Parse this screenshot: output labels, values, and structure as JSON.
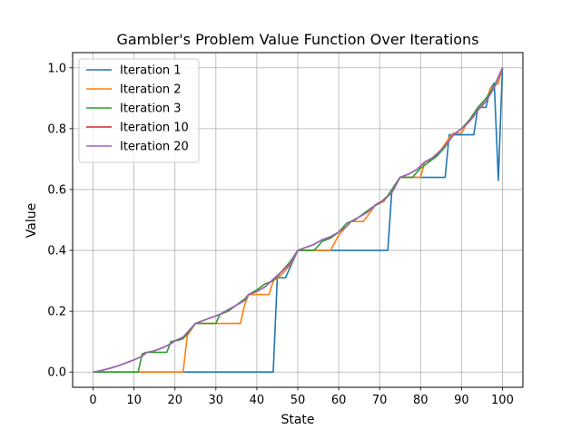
{
  "chart_data": {
    "type": "line",
    "title": "Gambler's Problem Value Function Over Iterations",
    "xlabel": "State",
    "ylabel": "Value",
    "xlim": [
      -5,
      105
    ],
    "ylim": [
      -0.05,
      1.05
    ],
    "xticks": [
      0,
      10,
      20,
      30,
      40,
      50,
      60,
      70,
      80,
      90,
      100
    ],
    "yticks": [
      0.0,
      0.2,
      0.4,
      0.6,
      0.8,
      1.0
    ],
    "xtick_labels": [
      "0",
      "10",
      "20",
      "30",
      "40",
      "50",
      "60",
      "70",
      "80",
      "90",
      "100"
    ],
    "ytick_labels": [
      "0.0",
      "0.2",
      "0.4",
      "0.6",
      "0.8",
      "1.0"
    ],
    "grid": true,
    "legend_position": "top-left",
    "series": [
      {
        "name": "Iteration 1",
        "color": "#1f77b4",
        "points": [
          [
            0,
            0
          ],
          [
            44,
            0
          ],
          [
            45,
            0.31
          ],
          [
            47,
            0.31
          ],
          [
            48,
            0.34
          ],
          [
            50,
            0.4
          ],
          [
            72,
            0.4
          ],
          [
            73,
            0.6
          ],
          [
            74,
            0.62
          ],
          [
            75,
            0.64
          ],
          [
            86,
            0.64
          ],
          [
            87,
            0.78
          ],
          [
            93,
            0.78
          ],
          [
            94,
            0.87
          ],
          [
            96,
            0.87
          ],
          [
            97,
            0.93
          ],
          [
            98,
            0.95
          ],
          [
            99,
            0.63
          ],
          [
            100,
            1.0
          ]
        ]
      },
      {
        "name": "Iteration 2",
        "color": "#ff7f0e",
        "points": [
          [
            0,
            0
          ],
          [
            22,
            0
          ],
          [
            23,
            0.12
          ],
          [
            25,
            0.16
          ],
          [
            36,
            0.16
          ],
          [
            37,
            0.22
          ],
          [
            38,
            0.255
          ],
          [
            43,
            0.255
          ],
          [
            44,
            0.3
          ],
          [
            46,
            0.32
          ],
          [
            48,
            0.35
          ],
          [
            50,
            0.4
          ],
          [
            58,
            0.4
          ],
          [
            60,
            0.45
          ],
          [
            62,
            0.48
          ],
          [
            63,
            0.495
          ],
          [
            66,
            0.495
          ],
          [
            68,
            0.53
          ],
          [
            69,
            0.55
          ],
          [
            71,
            0.56
          ],
          [
            72,
            0.58
          ],
          [
            74,
            0.62
          ],
          [
            75,
            0.64
          ],
          [
            80,
            0.64
          ],
          [
            81,
            0.69
          ],
          [
            83,
            0.7
          ],
          [
            85,
            0.73
          ],
          [
            87,
            0.77
          ],
          [
            88,
            0.785
          ],
          [
            90,
            0.785
          ],
          [
            91,
            0.81
          ],
          [
            93,
            0.84
          ],
          [
            94,
            0.87
          ],
          [
            96,
            0.89
          ],
          [
            97,
            0.93
          ],
          [
            99,
            0.95
          ],
          [
            100,
            1.0
          ]
        ]
      },
      {
        "name": "Iteration 3",
        "color": "#2ca02c",
        "points": [
          [
            0,
            0
          ],
          [
            11,
            0
          ],
          [
            12,
            0.06
          ],
          [
            13,
            0.065
          ],
          [
            18,
            0.065
          ],
          [
            19,
            0.1
          ],
          [
            21,
            0.105
          ],
          [
            22,
            0.11
          ],
          [
            23,
            0.125
          ],
          [
            25,
            0.16
          ],
          [
            30,
            0.16
          ],
          [
            31,
            0.19
          ],
          [
            33,
            0.2
          ],
          [
            34,
            0.21
          ],
          [
            36,
            0.23
          ],
          [
            37,
            0.24
          ],
          [
            38,
            0.255
          ],
          [
            40,
            0.27
          ],
          [
            42,
            0.29
          ],
          [
            44,
            0.3
          ],
          [
            46,
            0.33
          ],
          [
            48,
            0.36
          ],
          [
            50,
            0.4
          ],
          [
            54,
            0.4
          ],
          [
            56,
            0.43
          ],
          [
            58,
            0.44
          ],
          [
            60,
            0.46
          ],
          [
            62,
            0.49
          ],
          [
            64,
            0.5
          ],
          [
            66,
            0.52
          ],
          [
            68,
            0.54
          ],
          [
            70,
            0.555
          ],
          [
            72,
            0.58
          ],
          [
            74,
            0.62
          ],
          [
            75,
            0.64
          ],
          [
            78,
            0.64
          ],
          [
            80,
            0.67
          ],
          [
            82,
            0.69
          ],
          [
            84,
            0.71
          ],
          [
            86,
            0.74
          ],
          [
            88,
            0.78
          ],
          [
            90,
            0.8
          ],
          [
            92,
            0.83
          ],
          [
            94,
            0.87
          ],
          [
            96,
            0.9
          ],
          [
            98,
            0.94
          ],
          [
            100,
            1.0
          ]
        ]
      },
      {
        "name": "Iteration 10",
        "color": "#d62728",
        "points": [
          [
            0,
            0
          ],
          [
            2,
            0.005
          ],
          [
            4,
            0.012
          ],
          [
            6,
            0.02
          ],
          [
            8,
            0.03
          ],
          [
            10,
            0.04
          ],
          [
            12,
            0.052
          ],
          [
            13,
            0.064
          ],
          [
            15,
            0.07
          ],
          [
            17,
            0.08
          ],
          [
            19,
            0.093
          ],
          [
            20,
            0.103
          ],
          [
            22,
            0.115
          ],
          [
            25,
            0.16
          ],
          [
            27,
            0.17
          ],
          [
            29,
            0.18
          ],
          [
            31,
            0.19
          ],
          [
            33,
            0.205
          ],
          [
            35,
            0.22
          ],
          [
            37,
            0.235
          ],
          [
            38,
            0.255
          ],
          [
            40,
            0.265
          ],
          [
            42,
            0.28
          ],
          [
            44,
            0.305
          ],
          [
            46,
            0.33
          ],
          [
            48,
            0.355
          ],
          [
            50,
            0.4
          ],
          [
            52,
            0.41
          ],
          [
            54,
            0.42
          ],
          [
            56,
            0.435
          ],
          [
            58,
            0.445
          ],
          [
            60,
            0.46
          ],
          [
            62,
            0.48
          ],
          [
            63,
            0.495
          ],
          [
            65,
            0.51
          ],
          [
            67,
            0.525
          ],
          [
            69,
            0.55
          ],
          [
            71,
            0.565
          ],
          [
            73,
            0.59
          ],
          [
            75,
            0.64
          ],
          [
            77,
            0.65
          ],
          [
            79,
            0.665
          ],
          [
            81,
            0.69
          ],
          [
            83,
            0.705
          ],
          [
            85,
            0.73
          ],
          [
            87,
            0.76
          ],
          [
            88,
            0.78
          ],
          [
            90,
            0.8
          ],
          [
            92,
            0.825
          ],
          [
            94,
            0.86
          ],
          [
            96,
            0.89
          ],
          [
            98,
            0.935
          ],
          [
            100,
            1.0
          ]
        ]
      },
      {
        "name": "Iteration 20",
        "color": "#9467bd",
        "points": [
          [
            0,
            0
          ],
          [
            2,
            0.005
          ],
          [
            4,
            0.012
          ],
          [
            6,
            0.02
          ],
          [
            8,
            0.03
          ],
          [
            10,
            0.04
          ],
          [
            12,
            0.052
          ],
          [
            13,
            0.064
          ],
          [
            15,
            0.07
          ],
          [
            17,
            0.08
          ],
          [
            19,
            0.093
          ],
          [
            20,
            0.103
          ],
          [
            22,
            0.115
          ],
          [
            25,
            0.16
          ],
          [
            27,
            0.17
          ],
          [
            29,
            0.18
          ],
          [
            31,
            0.19
          ],
          [
            33,
            0.205
          ],
          [
            35,
            0.22
          ],
          [
            37,
            0.235
          ],
          [
            38,
            0.255
          ],
          [
            40,
            0.265
          ],
          [
            42,
            0.28
          ],
          [
            44,
            0.305
          ],
          [
            46,
            0.33
          ],
          [
            48,
            0.355
          ],
          [
            50,
            0.4
          ],
          [
            52,
            0.41
          ],
          [
            54,
            0.42
          ],
          [
            56,
            0.435
          ],
          [
            58,
            0.445
          ],
          [
            60,
            0.46
          ],
          [
            62,
            0.48
          ],
          [
            63,
            0.495
          ],
          [
            65,
            0.51
          ],
          [
            67,
            0.525
          ],
          [
            69,
            0.55
          ],
          [
            71,
            0.565
          ],
          [
            73,
            0.59
          ],
          [
            75,
            0.64
          ],
          [
            77,
            0.65
          ],
          [
            79,
            0.665
          ],
          [
            81,
            0.69
          ],
          [
            83,
            0.705
          ],
          [
            85,
            0.73
          ],
          [
            87,
            0.76
          ],
          [
            88,
            0.78
          ],
          [
            90,
            0.8
          ],
          [
            92,
            0.825
          ],
          [
            94,
            0.86
          ],
          [
            96,
            0.89
          ],
          [
            98,
            0.935
          ],
          [
            100,
            1.0
          ]
        ]
      }
    ]
  }
}
